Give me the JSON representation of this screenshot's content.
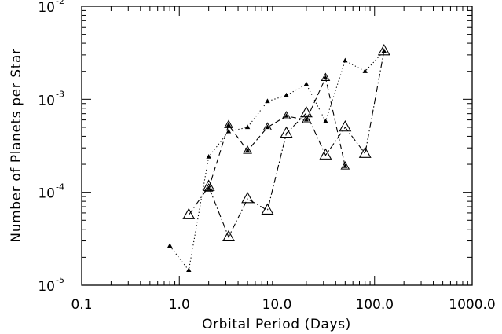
{
  "chart_data": {
    "type": "line",
    "title": "",
    "xlabel": "Orbital Period (Days)",
    "ylabel": "Number of Planets per Star",
    "xscale": "log",
    "yscale": "log",
    "xlim": [
      0.1,
      1000
    ],
    "ylim": [
      1e-05,
      0.01
    ],
    "grid": false,
    "legend": "none",
    "x_ticks": [
      {
        "value": 0.1,
        "label": "0.1"
      },
      {
        "value": 1,
        "label": "1.0"
      },
      {
        "value": 10,
        "label": "10.0"
      },
      {
        "value": 100,
        "label": "100.0"
      },
      {
        "value": 1000,
        "label": "1000.0"
      }
    ],
    "y_ticks": [
      {
        "value": 1e-05,
        "base": "10",
        "exp": "-5"
      },
      {
        "value": 0.0001,
        "base": "10",
        "exp": "-4"
      },
      {
        "value": 0.001,
        "base": "10",
        "exp": "-3"
      },
      {
        "value": 0.01,
        "base": "10",
        "exp": "-2"
      }
    ],
    "series": [
      {
        "style": "dotted",
        "marker": "small-filled-triangle",
        "color": "#000000",
        "points": [
          [
            0.8,
            2.65e-05
          ],
          [
            1.25,
            1.45e-05
          ],
          [
            2.0,
            0.00024
          ],
          [
            3.2,
            0.00045
          ],
          [
            5.0,
            0.0005
          ],
          [
            8.0,
            0.00095
          ],
          [
            12.5,
            0.0011
          ],
          [
            20.0,
            0.00145
          ],
          [
            31.5,
            0.00058
          ],
          [
            50.0,
            0.0026
          ],
          [
            80.0,
            0.002
          ],
          [
            125.0,
            0.0033
          ]
        ]
      },
      {
        "style": "dashed",
        "marker": "medium-open-triangle",
        "color": "#000000",
        "points": [
          [
            2.0,
            0.00011
          ],
          [
            3.2,
            0.00053
          ],
          [
            5.0,
            0.00028
          ],
          [
            8.0,
            0.0005
          ],
          [
            12.5,
            0.00066
          ],
          [
            20.0,
            0.0006
          ],
          [
            31.5,
            0.0017
          ],
          [
            50.0,
            0.00019
          ]
        ]
      },
      {
        "style": "dash-dot",
        "marker": "large-open-triangle",
        "color": "#000000",
        "points": [
          [
            1.25,
            5.7e-05
          ],
          [
            2.0,
            0.000115
          ],
          [
            3.2,
            3.3e-05
          ],
          [
            5.0,
            8.5e-05
          ],
          [
            8.0,
            6.4e-05
          ],
          [
            12.5,
            0.00043
          ],
          [
            20.0,
            0.00071
          ],
          [
            31.5,
            0.00025
          ],
          [
            50.0,
            0.0005
          ],
          [
            80.0,
            0.00026
          ],
          [
            125.0,
            0.0033
          ]
        ]
      }
    ]
  }
}
